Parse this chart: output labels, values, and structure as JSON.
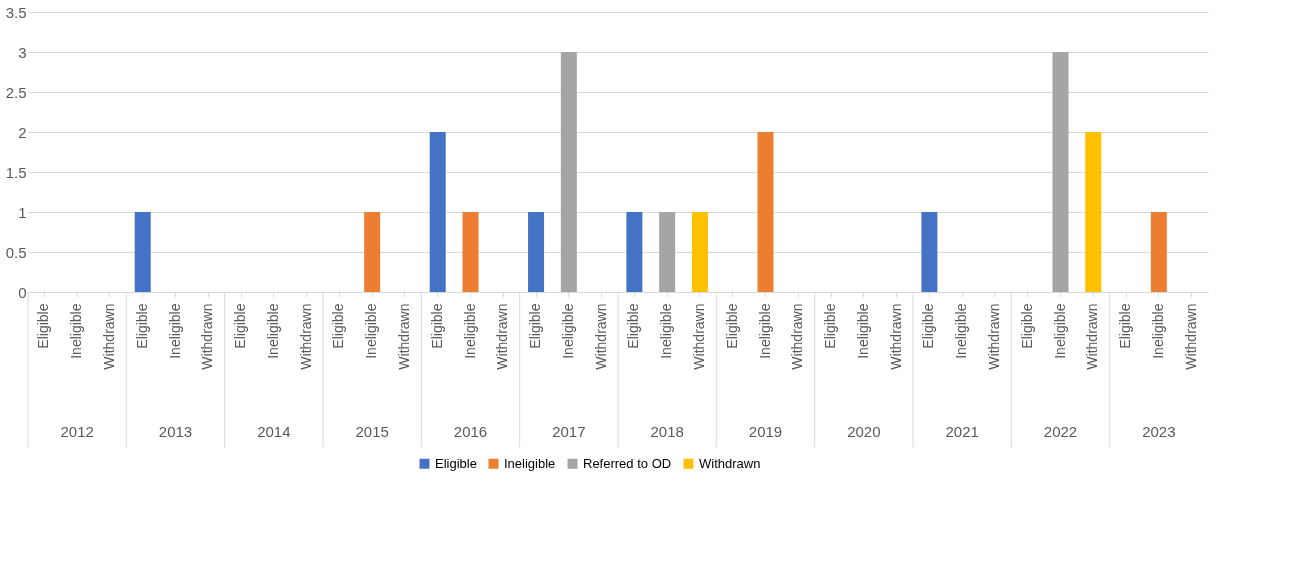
{
  "chart_data": {
    "type": "bar",
    "stacked": true,
    "categories": [
      "Eligible",
      "Ineligible",
      "Withdrawn",
      "Eligible",
      "Ineligible",
      "Withdrawn",
      "Eligible",
      "Ineligible",
      "Withdrawn",
      "Eligible",
      "Ineligible",
      "Withdrawn",
      "Eligible",
      "Ineligible",
      "Withdrawn",
      "Eligible",
      "Ineligible",
      "Withdrawn",
      "Eligible",
      "Ineligible",
      "Withdrawn",
      "Eligible",
      "Ineligible",
      "Withdrawn",
      "Eligible",
      "Ineligible",
      "Withdrawn",
      "Eligible",
      "Ineligible",
      "Withdrawn",
      "Eligible",
      "Ineligible",
      "Withdrawn",
      "Eligible",
      "Ineligible",
      "Withdrawn"
    ],
    "series": [
      {
        "name": "Eligible",
        "color": "#4472c4",
        "values": [
          null,
          null,
          null,
          1,
          null,
          null,
          null,
          null,
          null,
          null,
          null,
          null,
          2,
          null,
          null,
          1,
          null,
          null,
          1,
          null,
          null,
          null,
          null,
          null,
          null,
          null,
          null,
          1,
          null,
          null,
          null,
          null,
          null,
          null,
          null,
          null
        ]
      },
      {
        "name": "Ineligible",
        "color": "#ed7d31",
        "values": [
          null,
          null,
          null,
          null,
          null,
          null,
          null,
          null,
          null,
          null,
          1,
          null,
          null,
          1,
          null,
          null,
          null,
          null,
          null,
          null,
          null,
          null,
          2,
          null,
          null,
          null,
          null,
          null,
          null,
          null,
          null,
          null,
          null,
          null,
          1,
          null
        ]
      },
      {
        "name": "Referred to OD",
        "color": "#a5a5a5",
        "values": [
          null,
          null,
          null,
          null,
          null,
          null,
          null,
          null,
          null,
          null,
          null,
          null,
          null,
          null,
          null,
          null,
          3,
          null,
          null,
          1,
          null,
          null,
          null,
          null,
          null,
          null,
          null,
          null,
          null,
          null,
          null,
          3,
          null,
          null,
          null,
          null
        ]
      },
      {
        "name": "Withdrawn",
        "color": "#ffc000",
        "values": [
          null,
          null,
          null,
          null,
          null,
          null,
          null,
          null,
          null,
          null,
          null,
          null,
          null,
          null,
          null,
          null,
          null,
          null,
          null,
          null,
          1,
          null,
          null,
          null,
          null,
          null,
          null,
          null,
          null,
          null,
          null,
          null,
          2,
          null,
          null,
          null
        ]
      }
    ],
    "annotations": [
      "2012",
      "2013",
      "2014",
      "2015",
      "2016",
      "2017",
      "2018",
      "2019",
      "2020",
      "2021",
      "2022",
      "2023"
    ],
    "ylim": [
      0,
      3.5
    ],
    "yticks": [
      0,
      0.5,
      1,
      1.5,
      2,
      2.5,
      3,
      3.5
    ],
    "grid": "y",
    "legend": "bottom"
  }
}
